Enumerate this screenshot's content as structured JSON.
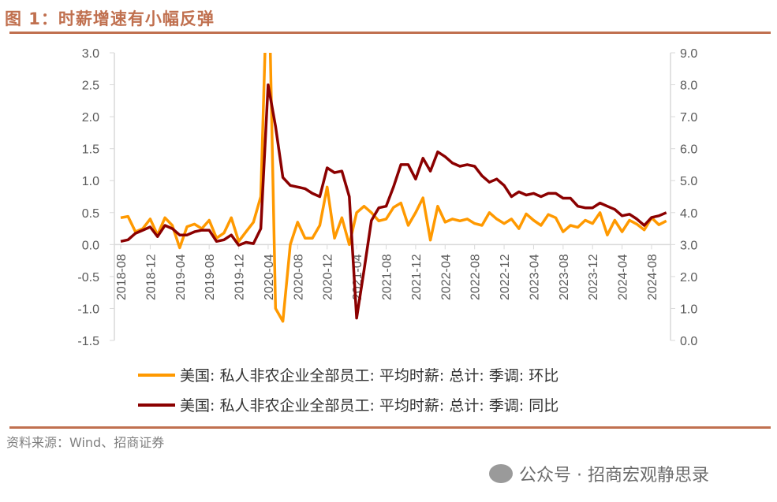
{
  "title": "图 1：时薪增速有小幅反弹",
  "source": "资料来源：Wind、招商证券",
  "watermark": "公众号 · 招商宏观静思录",
  "chart_data": {
    "type": "line",
    "title": "",
    "x_start": "2018-08",
    "x_tick_labels": [
      "2018-08",
      "2018-12",
      "2019-04",
      "2019-08",
      "2019-12",
      "2020-04",
      "2020-08",
      "2020-12",
      "2021-04",
      "2021-08",
      "2021-12",
      "2022-04",
      "2022-08",
      "2022-12",
      "2023-04",
      "2023-08",
      "2023-12",
      "2024-04",
      "2024-08"
    ],
    "left_axis": {
      "ylim": [
        -1.5,
        3.0
      ],
      "ticks": [
        "3.0",
        "2.5",
        "2.0",
        "1.5",
        "1.0",
        "0.5",
        "0.0",
        "-0.5",
        "-1.0",
        "-1.5"
      ]
    },
    "right_axis": {
      "ylim": [
        0.0,
        9.0
      ],
      "ticks": [
        "9.0",
        "8.0",
        "7.0",
        "6.0",
        "5.0",
        "4.0",
        "3.0",
        "2.0",
        "1.0",
        "0.0"
      ]
    },
    "grid": false,
    "legend_position": "bottom",
    "series": [
      {
        "name": "美国: 私人非农企业全部员工: 平均时薪: 总计: 季调: 环比",
        "axis": "left",
        "color": "#ff9900",
        "values": [
          0.42,
          0.44,
          0.2,
          0.25,
          0.4,
          0.15,
          0.42,
          0.3,
          -0.05,
          0.28,
          0.32,
          0.25,
          0.38,
          0.1,
          0.18,
          0.42,
          0.05,
          0.2,
          0.35,
          0.75,
          4.7,
          -1.0,
          -1.2,
          0.0,
          0.35,
          0.1,
          0.1,
          0.3,
          0.9,
          0.1,
          0.42,
          0.0,
          0.5,
          0.6,
          0.5,
          0.37,
          0.4,
          0.58,
          0.65,
          0.3,
          0.5,
          0.73,
          0.07,
          0.6,
          0.35,
          0.4,
          0.37,
          0.4,
          0.33,
          0.3,
          0.5,
          0.4,
          0.33,
          0.4,
          0.25,
          0.48,
          0.38,
          0.3,
          0.47,
          0.42,
          0.2,
          0.3,
          0.27,
          0.38,
          0.33,
          0.5,
          0.15,
          0.38,
          0.2,
          0.38,
          0.32,
          0.23,
          0.42,
          0.31,
          0.37
        ]
      },
      {
        "name": "美国: 私人非农企业全部员工: 平均时薪: 总计: 季调: 同比",
        "axis": "right",
        "color": "#8b0000",
        "values": [
          3.1,
          3.15,
          3.35,
          3.45,
          3.55,
          3.25,
          3.6,
          3.5,
          3.3,
          3.3,
          3.4,
          3.45,
          3.45,
          3.1,
          3.15,
          3.3,
          2.98,
          3.07,
          3.03,
          3.5,
          8.0,
          6.7,
          5.1,
          4.85,
          4.8,
          4.75,
          4.6,
          4.5,
          5.4,
          5.25,
          5.3,
          4.5,
          0.7,
          2.2,
          3.75,
          4.15,
          4.2,
          4.8,
          5.5,
          5.5,
          5.05,
          5.7,
          5.3,
          5.9,
          5.75,
          5.55,
          5.45,
          5.5,
          5.45,
          5.15,
          4.95,
          5.05,
          4.85,
          4.5,
          4.65,
          4.55,
          4.6,
          4.5,
          4.6,
          4.6,
          4.45,
          4.45,
          4.2,
          4.15,
          4.15,
          4.3,
          4.2,
          4.1,
          3.9,
          3.95,
          3.8,
          3.6,
          3.85,
          3.9,
          4.0
        ]
      }
    ]
  }
}
